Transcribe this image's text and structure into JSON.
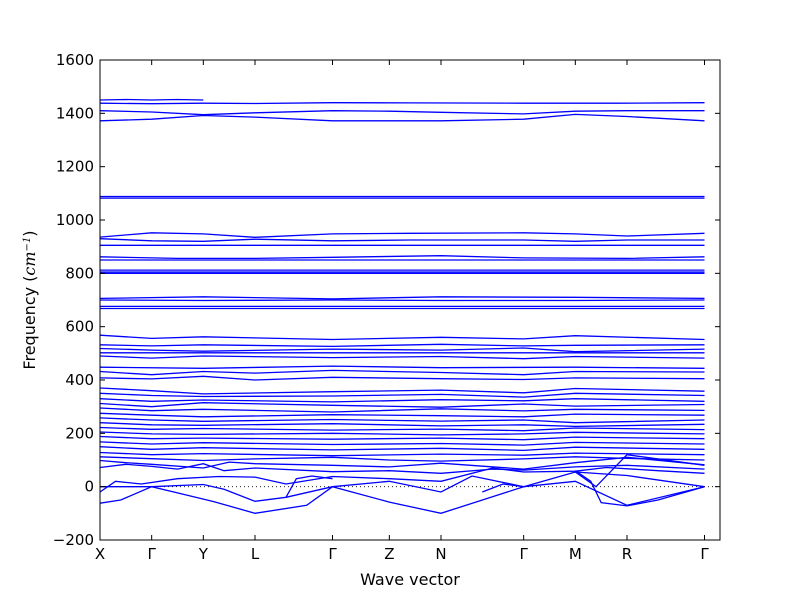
{
  "chart_data": {
    "type": "line",
    "title": "",
    "xlabel": "Wave vector",
    "ylabel": "Frequency ($cm^{-1}$)",
    "ylabel_parts": {
      "prefix": "Frequency (",
      "unit_base": "cm",
      "unit_exp": "−1",
      "suffix": ")"
    },
    "ylim": [
      -200,
      1600
    ],
    "yticks": [
      -200,
      0,
      200,
      400,
      600,
      800,
      1000,
      1200,
      1400,
      1600
    ],
    "x_range": [
      0,
      12
    ],
    "high_symmetry_points": [
      {
        "label": "X",
        "x": 0
      },
      {
        "label": "Γ",
        "x": 1
      },
      {
        "label": "Y",
        "x": 2
      },
      {
        "label": "L",
        "x": 3
      },
      {
        "label": "Γ",
        "x": 4.5
      },
      {
        "label": "Z",
        "x": 5.6
      },
      {
        "label": "N",
        "x": 6.6
      },
      {
        "label": "Γ",
        "x": 8.2
      },
      {
        "label": "M",
        "x": 9.2
      },
      {
        "label": "R",
        "x": 10.2
      },
      {
        "label": "Γ",
        "x": 11.7
      }
    ],
    "zero_line": true,
    "line_color": "#0000ff",
    "series": [
      {
        "x": [
          0,
          0.5,
          1,
          1.5,
          2
        ],
        "y": [
          1450,
          1452,
          1450,
          1452,
          1450
        ]
      },
      {
        "x": [
          0,
          1,
          2,
          3,
          4.5,
          6,
          8.2,
          10,
          11.7
        ],
        "y": [
          1438,
          1436,
          1438,
          1437,
          1440,
          1439,
          1438,
          1438,
          1440
        ]
      },
      {
        "x": [
          0,
          1,
          2,
          3,
          4.5,
          5.6,
          6.6,
          8.2,
          9.2,
          10.2,
          11.7
        ],
        "y": [
          1410,
          1405,
          1395,
          1402,
          1410,
          1408,
          1404,
          1398,
          1408,
          1410,
          1410
        ]
      },
      {
        "x": [
          0,
          1,
          2,
          3,
          4.5,
          5.6,
          6.6,
          8.2,
          9.2,
          10.2,
          11.7
        ],
        "y": [
          1372,
          1378,
          1392,
          1386,
          1372,
          1372,
          1372,
          1378,
          1396,
          1388,
          1372
        ]
      },
      {
        "x": [
          0,
          11.7
        ],
        "y": [
          1088,
          1088
        ]
      },
      {
        "x": [
          0,
          11.7
        ],
        "y": [
          1082,
          1082
        ]
      },
      {
        "x": [
          0,
          1,
          2,
          3,
          4.5,
          6,
          8.2,
          9.2,
          10.2,
          11.7
        ],
        "y": [
          936,
          952,
          948,
          935,
          948,
          950,
          952,
          948,
          940,
          950
        ]
      },
      {
        "x": [
          0,
          1,
          2,
          3,
          4.5,
          6,
          8.2,
          9.2,
          10.2,
          11.7
        ],
        "y": [
          930,
          922,
          920,
          928,
          922,
          925,
          925,
          920,
          925,
          925
        ]
      },
      {
        "x": [
          0,
          11.7
        ],
        "y": [
          905,
          905
        ]
      },
      {
        "x": [
          0,
          1.5,
          3,
          4.5,
          6.6,
          8.2,
          10.2,
          11.7
        ],
        "y": [
          862,
          856,
          856,
          860,
          866,
          858,
          856,
          862
        ]
      },
      {
        "x": [
          0,
          11.7
        ],
        "y": [
          850,
          850
        ]
      },
      {
        "x": [
          0,
          11.7
        ],
        "y": [
          812,
          812
        ]
      },
      {
        "x": [
          0,
          11.7
        ],
        "y": [
          805,
          805
        ]
      },
      {
        "x": [
          0,
          11.7
        ],
        "y": [
          800,
          800
        ]
      },
      {
        "x": [
          0,
          2,
          4.5,
          6.6,
          9.2,
          11.7
        ],
        "y": [
          706,
          712,
          704,
          712,
          710,
          706
        ]
      },
      {
        "x": [
          0,
          2,
          4.5,
          6.6,
          9.2,
          11.7
        ],
        "y": [
          700,
          698,
          700,
          698,
          698,
          700
        ]
      },
      {
        "x": [
          0,
          11.7
        ],
        "y": [
          676,
          676
        ]
      },
      {
        "x": [
          0,
          11.7
        ],
        "y": [
          668,
          668
        ]
      },
      {
        "x": [
          0,
          1,
          2,
          4.5,
          6.6,
          8.2,
          9.2,
          11.7
        ],
        "y": [
          568,
          556,
          562,
          552,
          560,
          554,
          566,
          552
        ]
      },
      {
        "x": [
          0,
          1,
          2,
          4.5,
          6.6,
          8.2,
          9.2,
          11.7
        ],
        "y": [
          532,
          528,
          532,
          526,
          534,
          528,
          530,
          532
        ]
      },
      {
        "x": [
          0,
          1,
          2,
          4.5,
          6.6,
          8.2,
          9.2,
          11.7
        ],
        "y": [
          518,
          512,
          508,
          516,
          512,
          520,
          506,
          516
        ]
      },
      {
        "x": [
          0,
          11.7
        ],
        "y": [
          502,
          502
        ]
      },
      {
        "x": [
          0,
          1,
          2,
          4.5,
          6.6,
          8.2,
          9.2,
          11.7
        ],
        "y": [
          490,
          482,
          490,
          484,
          488,
          480,
          488,
          482
        ]
      },
      {
        "x": [
          0,
          2,
          4.5,
          6.6,
          9.2,
          11.7
        ],
        "y": [
          448,
          444,
          452,
          446,
          448,
          444
        ]
      },
      {
        "x": [
          0,
          1,
          2,
          3,
          4.5,
          6.6,
          8.2,
          9.2,
          11.7
        ],
        "y": [
          432,
          420,
          432,
          426,
          436,
          428,
          420,
          432,
          430
        ]
      },
      {
        "x": [
          0,
          1,
          2,
          3,
          4.5,
          6.6,
          8.2,
          9.2,
          11.7
        ],
        "y": [
          408,
          404,
          414,
          400,
          410,
          405,
          402,
          408,
          405
        ]
      },
      {
        "x": [
          0,
          1,
          2,
          4.5,
          6.6,
          8.2,
          9.2,
          11.7
        ],
        "y": [
          370,
          360,
          348,
          356,
          362,
          352,
          368,
          358
        ]
      },
      {
        "x": [
          0,
          1,
          2,
          4.5,
          6.6,
          8.2,
          9.2,
          11.7
        ],
        "y": [
          350,
          342,
          338,
          340,
          346,
          336,
          350,
          342
        ]
      },
      {
        "x": [
          0,
          1,
          2,
          4.5,
          6.6,
          8.2,
          9.2,
          11.7
        ],
        "y": [
          330,
          320,
          325,
          318,
          326,
          322,
          330,
          320
        ]
      },
      {
        "x": [
          0,
          1,
          2,
          4.5,
          6.6,
          8.2,
          9.2,
          11.7
        ],
        "y": [
          312,
          300,
          315,
          305,
          298,
          310,
          302,
          308
        ]
      },
      {
        "x": [
          0,
          1,
          2,
          4.5,
          6.6,
          8.2,
          9.2,
          11.7
        ],
        "y": [
          295,
          285,
          290,
          280,
          292,
          284,
          290,
          286
        ]
      },
      {
        "x": [
          0,
          1,
          2,
          4.5,
          6.6,
          8.2,
          9.2,
          11.7
        ],
        "y": [
          275,
          268,
          262,
          270,
          266,
          262,
          272,
          268
        ]
      },
      {
        "x": [
          0,
          1,
          2,
          4.5,
          6.6,
          8.2,
          9.2,
          11.7
        ],
        "y": [
          258,
          250,
          245,
          252,
          246,
          250,
          240,
          250
        ]
      },
      {
        "x": [
          0,
          1,
          2,
          4.5,
          6.6,
          8.2,
          9.2,
          11.7
        ],
        "y": [
          240,
          232,
          230,
          236,
          228,
          232,
          226,
          234
        ]
      },
      {
        "x": [
          0,
          1,
          2,
          4.5,
          6.6,
          8.2,
          9.2,
          11.7
        ],
        "y": [
          222,
          215,
          218,
          212,
          216,
          210,
          220,
          214
        ]
      },
      {
        "x": [
          0,
          1,
          2,
          4.5,
          6.6,
          8.2,
          9.2,
          11.7
        ],
        "y": [
          205,
          198,
          196,
          200,
          194,
          198,
          204,
          198
        ]
      },
      {
        "x": [
          0,
          1,
          2,
          4.5,
          6.6,
          8.2,
          9.2,
          11.7
        ],
        "y": [
          188,
          180,
          182,
          178,
          182,
          176,
          186,
          180
        ]
      },
      {
        "x": [
          0,
          1,
          2,
          4.5,
          6.6,
          8.2,
          9.2,
          11.7
        ],
        "y": [
          168,
          160,
          165,
          158,
          162,
          156,
          166,
          160
        ]
      },
      {
        "x": [
          0,
          1,
          2,
          4.5,
          6.6,
          8.2,
          9.2,
          11.7
        ],
        "y": [
          150,
          140,
          146,
          138,
          144,
          136,
          148,
          140
        ]
      },
      {
        "x": [
          0,
          1,
          2,
          4.5,
          6.6,
          8.2,
          9.2,
          11.7
        ],
        "y": [
          128,
          120,
          124,
          116,
          122,
          118,
          126,
          120
        ]
      },
      {
        "x": [
          0,
          1,
          2,
          3,
          4.5,
          5.6,
          6.6,
          8.2,
          9.2,
          10.2,
          11.7
        ],
        "y": [
          112,
          105,
          98,
          104,
          110,
          100,
          96,
          104,
          112,
          106,
          100
        ]
      },
      {
        "x": [
          0,
          0.5,
          1,
          2,
          2.5,
          3,
          4.5,
          5.6,
          6.6,
          8.2,
          9.2,
          10.2,
          11.7
        ],
        "y": [
          98,
          90,
          84,
          70,
          92,
          86,
          80,
          74,
          88,
          66,
          90,
          110,
          82
        ]
      },
      {
        "x": [
          0,
          0.5,
          1,
          1.5,
          2,
          2.4,
          3,
          4.5,
          5.6,
          6.6,
          7.6,
          8.2,
          9.2,
          10.2,
          11.7
        ],
        "y": [
          72,
          84,
          76,
          66,
          86,
          60,
          70,
          56,
          60,
          50,
          66,
          62,
          74,
          80,
          66
        ]
      },
      {
        "x": [
          0,
          0.3,
          0.8,
          1.5,
          2.3,
          3,
          3.6,
          4.5,
          5.6,
          6.6,
          7.6,
          8.2,
          9.2,
          9.8,
          10.8,
          11.7
        ],
        "y": [
          -20,
          20,
          10,
          30,
          38,
          36,
          10,
          38,
          30,
          20,
          70,
          55,
          58,
          72,
          60,
          50
        ]
      },
      {
        "x": [
          0,
          0.4,
          1,
          1.6,
          2.2,
          3,
          4,
          4.5,
          5.6,
          6.6,
          8.2,
          9.2,
          10.2,
          11.7
        ],
        "y": [
          -62,
          -50,
          0,
          -28,
          -56,
          -100,
          -70,
          0,
          -58,
          -100,
          0,
          55,
          42,
          0
        ]
      },
      {
        "x": [
          0,
          1,
          2,
          2.4,
          3,
          3.6,
          4.5,
          5.6,
          6.6,
          7.2,
          8.2,
          9.2,
          10.2,
          11.7
        ],
        "y": [
          0,
          0,
          8,
          -10,
          -55,
          -40,
          0,
          20,
          -20,
          40,
          0,
          20,
          -70,
          0
        ]
      },
      {
        "x": [
          3.6,
          3.8,
          4.1,
          4.5
        ],
        "y": [
          -40,
          30,
          40,
          30
        ]
      },
      {
        "x": [
          7.4,
          7.8,
          8.2
        ],
        "y": [
          -20,
          10,
          0
        ]
      },
      {
        "x": [
          9.2,
          9.5,
          9.7,
          10.2,
          10.8,
          11.7
        ],
        "y": [
          60,
          20,
          -60,
          -72,
          -50,
          0
        ]
      },
      {
        "x": [
          9.2,
          9.6,
          10.2,
          11.7
        ],
        "y": [
          55,
          0,
          120,
          80
        ]
      }
    ]
  }
}
